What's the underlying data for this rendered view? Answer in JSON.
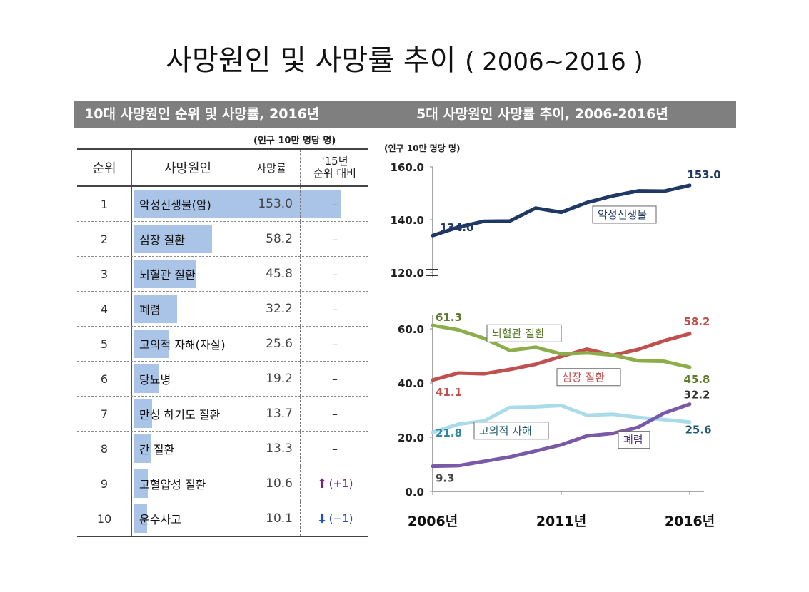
{
  "title": {
    "main": "사망원인 및 사망률 추이",
    "range": "( 2006~2016 )"
  },
  "left_band": "10대 사망원인 순위 및 사망률, 2016년",
  "right_band": "5대 사망원인 사망률 추이, 2006-2016년",
  "table_unit": "(인구 10만 명당 명)",
  "table_headers": {
    "rank": "순위",
    "cause": "사망원인",
    "rate": "사망률",
    "compare_line1": "'15년",
    "compare_line2": "순위 대비"
  },
  "rows": [
    {
      "rank": "1",
      "cause": "악성신생물(암)",
      "rate": "153.0",
      "compare": "–",
      "arrow": ""
    },
    {
      "rank": "2",
      "cause": "심장 질환",
      "rate": "58.2",
      "compare": "–",
      "arrow": ""
    },
    {
      "rank": "3",
      "cause": "뇌혈관 질환",
      "rate": "45.8",
      "compare": "–",
      "arrow": ""
    },
    {
      "rank": "4",
      "cause": "폐렴",
      "rate": "32.2",
      "compare": "–",
      "arrow": ""
    },
    {
      "rank": "5",
      "cause": "고의적 자해(자살)",
      "rate": "25.6",
      "compare": "–",
      "arrow": ""
    },
    {
      "rank": "6",
      "cause": "당뇨병",
      "rate": "19.2",
      "compare": "–",
      "arrow": ""
    },
    {
      "rank": "7",
      "cause": "만성 하기도 질환",
      "rate": "13.7",
      "compare": "–",
      "arrow": ""
    },
    {
      "rank": "8",
      "cause": "간 질환",
      "rate": "13.3",
      "compare": "–",
      "arrow": ""
    },
    {
      "rank": "9",
      "cause": "고혈압성 질환",
      "rate": "10.6",
      "compare": "(+1)",
      "arrow": "up"
    },
    {
      "rank": "10",
      "cause": "운수사고",
      "rate": "10.1",
      "compare": "(−1)",
      "arrow": "down"
    }
  ],
  "chart_data": {
    "type": "line",
    "ylabel": "(인구 10만 명당 명)",
    "x": [
      2006,
      2007,
      2008,
      2009,
      2010,
      2011,
      2012,
      2013,
      2014,
      2015,
      2016
    ],
    "xtick_labels": [
      "2006년",
      "2011년",
      "2016년"
    ],
    "xticks": [
      2006,
      2011,
      2016
    ],
    "ytick_labels": [
      "0.0",
      "20.0",
      "40.0",
      "60.0",
      "120.0",
      "140.0",
      "160.0"
    ],
    "axis_break": [
      63,
      118
    ],
    "ylim": [
      0,
      160
    ],
    "series": [
      {
        "name": "악성신생물",
        "color": "#1f3864",
        "values": [
          134.0,
          137.2,
          139.4,
          139.5,
          144.4,
          142.8,
          146.5,
          149.0,
          150.9,
          150.8,
          153.0
        ],
        "start_label": "134.0",
        "end_label": "153.0"
      },
      {
        "name": "심장 질환",
        "color": "#c0504d",
        "values": [
          41.1,
          43.7,
          43.4,
          45.0,
          46.9,
          49.8,
          52.5,
          50.2,
          52.4,
          55.6,
          58.2
        ],
        "start_label": "41.1",
        "end_label": "58.2"
      },
      {
        "name": "뇌혈관 질환",
        "color": "#8cad4a",
        "values": [
          61.3,
          59.6,
          56.5,
          52.0,
          53.2,
          50.7,
          51.1,
          50.3,
          48.2,
          48.0,
          45.8
        ],
        "start_label": "61.3",
        "end_label": "45.8"
      },
      {
        "name": "고의적 자해",
        "color": "#a9dbe8",
        "values": [
          21.8,
          24.8,
          26.0,
          31.0,
          31.2,
          31.7,
          28.1,
          28.5,
          27.3,
          26.5,
          25.6
        ],
        "start_label": "21.8",
        "end_label": "25.6"
      },
      {
        "name": "폐렴",
        "color": "#7a5aa6",
        "values": [
          9.3,
          9.5,
          11.1,
          12.7,
          14.9,
          17.2,
          20.5,
          21.4,
          23.7,
          28.9,
          32.2
        ],
        "start_label": "9.3",
        "end_label": "32.2"
      }
    ]
  }
}
